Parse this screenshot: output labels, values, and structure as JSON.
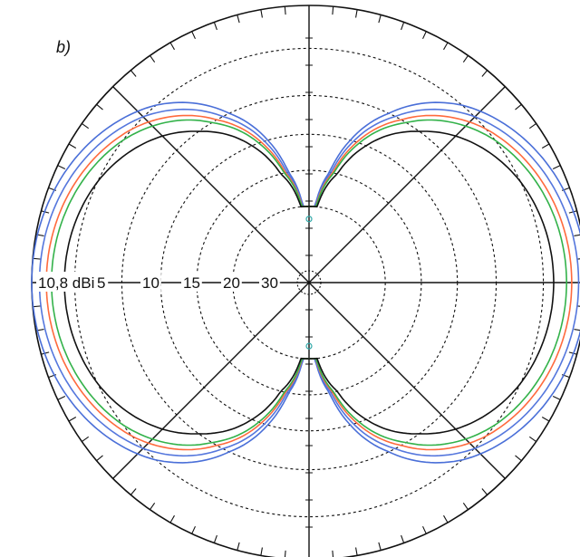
{
  "panel_label": "b)",
  "chart_data": {
    "type": "polar",
    "title": "",
    "radial_tick_labels": [
      "10,8 dBi",
      "5",
      "10",
      "15",
      "20",
      "30"
    ],
    "radial_unit": "dBi",
    "radial_levels_db_below_max": [
      0,
      5,
      10,
      15,
      20,
      30
    ],
    "angular_grid_deg": [
      0,
      45,
      90,
      135,
      180,
      225,
      270,
      315
    ],
    "angular_minor_tick_deg": 5,
    "grid": true,
    "pattern_shape": "figure-eight (dipole-like), nulls toward 0° and 180°",
    "colors": {
      "grid": "#111111",
      "series_blue_outer": "#4a6fd8",
      "series_blue_inner": "#5577dd",
      "series_red": "#ff6a3d",
      "series_green": "#33b24a",
      "series_black": "#111111",
      "null_accent": "#33aaaa"
    },
    "series": [
      {
        "color": "#4a6fd8",
        "peak_db_below_max": 0.0,
        "null_db_below_max": 30
      },
      {
        "color": "#5577dd",
        "peak_db_below_max": 0.9,
        "null_db_below_max": 30
      },
      {
        "color": "#ff6a3d",
        "peak_db_below_max": 1.7,
        "null_db_below_max": 30
      },
      {
        "color": "#33b24a",
        "peak_db_below_max": 2.3,
        "null_db_below_max": 30
      },
      {
        "color": "#111111",
        "peak_db_below_max": 3.8,
        "null_db_below_max": 30
      }
    ]
  }
}
